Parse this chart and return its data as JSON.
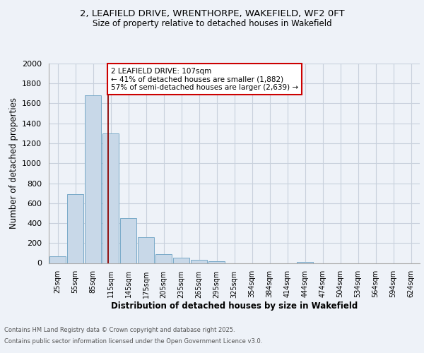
{
  "title_line1": "2, LEAFIELD DRIVE, WRENTHORPE, WAKEFIELD, WF2 0FT",
  "title_line2": "Size of property relative to detached houses in Wakefield",
  "xlabel": "Distribution of detached houses by size in Wakefield",
  "ylabel": "Number of detached properties",
  "categories": [
    "25sqm",
    "55sqm",
    "85sqm",
    "115sqm",
    "145sqm",
    "175sqm",
    "205sqm",
    "235sqm",
    "265sqm",
    "295sqm",
    "325sqm",
    "354sqm",
    "384sqm",
    "414sqm",
    "444sqm",
    "474sqm",
    "504sqm",
    "534sqm",
    "564sqm",
    "594sqm",
    "624sqm"
  ],
  "values": [
    70,
    690,
    1680,
    1300,
    450,
    255,
    90,
    55,
    30,
    20,
    0,
    0,
    0,
    0,
    10,
    0,
    0,
    0,
    0,
    0,
    0
  ],
  "bar_color": "#c8d8e8",
  "bar_edge_color": "#7aaac8",
  "grid_color": "#c8d0dc",
  "background_color": "#eef2f8",
  "vline_x": 2.87,
  "vline_color": "#8b0000",
  "annotation_text": "2 LEAFIELD DRIVE: 107sqm\n← 41% of detached houses are smaller (1,882)\n57% of semi-detached houses are larger (2,639) →",
  "annotation_box_color": "#ffffff",
  "annotation_box_edge": "#cc0000",
  "ylim": [
    0,
    2000
  ],
  "yticks": [
    0,
    200,
    400,
    600,
    800,
    1000,
    1200,
    1400,
    1600,
    1800,
    2000
  ],
  "footer_line1": "Contains HM Land Registry data © Crown copyright and database right 2025.",
  "footer_line2": "Contains public sector information licensed under the Open Government Licence v3.0."
}
